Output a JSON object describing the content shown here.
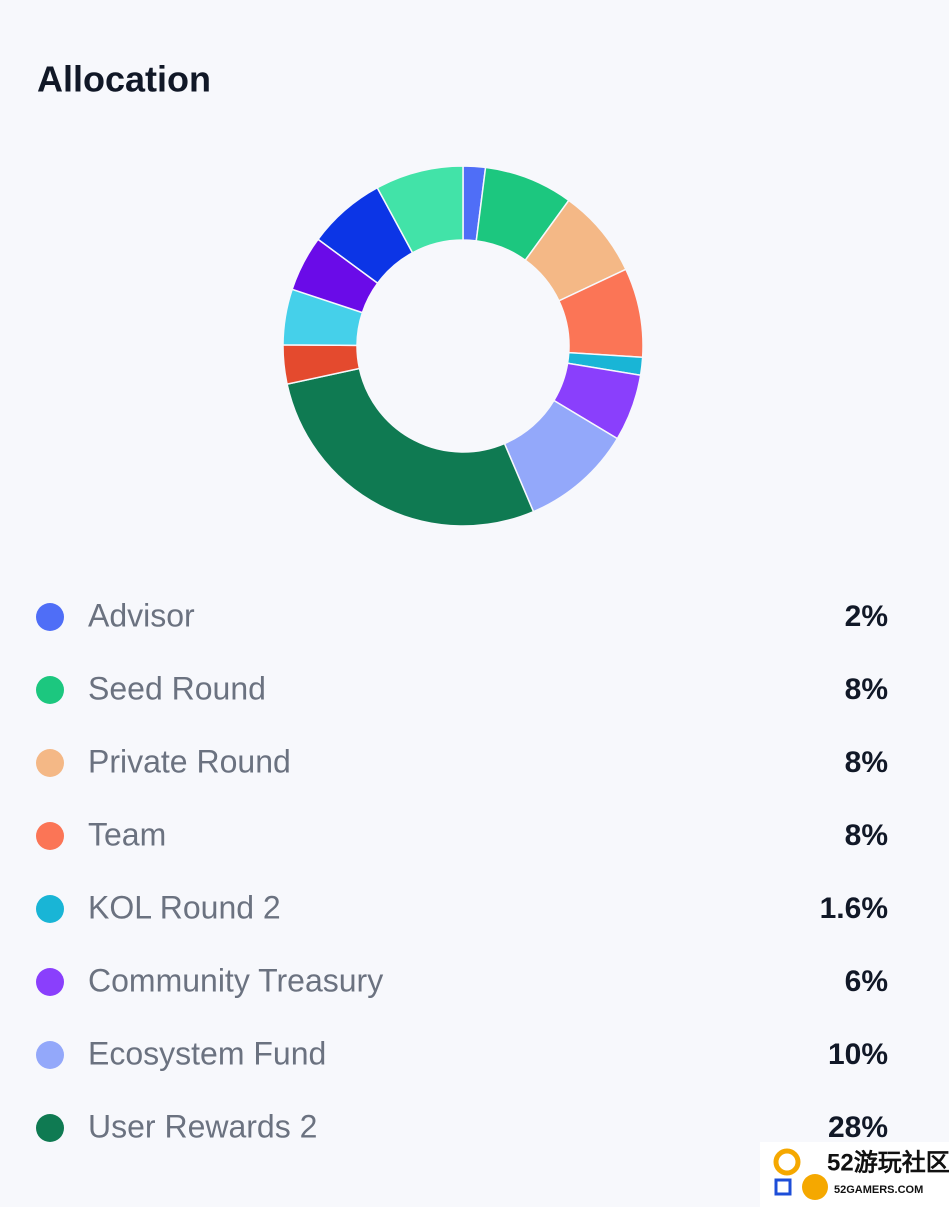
{
  "chart_data": {
    "type": "donut",
    "title": "Allocation",
    "categories": [
      "Advisor",
      "Seed Round",
      "Private Round",
      "Team",
      "KOL Round 2",
      "Community Treasury",
      "Ecosystem Fund",
      "User Rewards 2",
      null,
      null,
      null,
      null,
      null
    ],
    "values": [
      2,
      8,
      8,
      8,
      1.6,
      6,
      10,
      28,
      3.5,
      5,
      5,
      7,
      7.9
    ],
    "value_labels": [
      "2%",
      "8%",
      "8%",
      "8%",
      "1.6%",
      "6%",
      "10%",
      "28%",
      null,
      null,
      null,
      null,
      null
    ],
    "colors": [
      "#4f6ef7",
      "#1cc77f",
      "#f4b886",
      "#fb7556",
      "#19b5d6",
      "#8a3ffc",
      "#93a8fa",
      "#0f7a52",
      "#e44a2e",
      "#45d0ea",
      "#6a0be8",
      "#0c35e6",
      "#42e3a8"
    ]
  },
  "watermark": {
    "name": "52游玩社区",
    "site": "52GAMERS.COM"
  }
}
